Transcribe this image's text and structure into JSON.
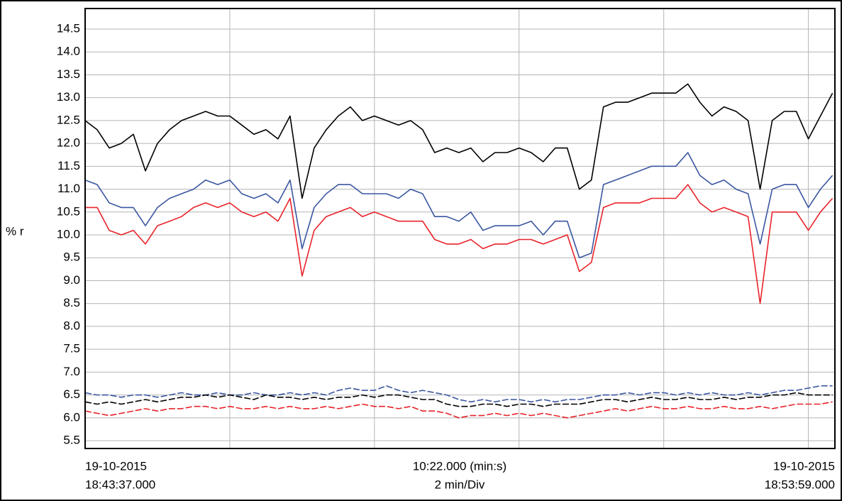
{
  "chart_data": {
    "type": "line",
    "y_label": "% r",
    "x_start_label": [
      "19-10-2015",
      "18:43:37.000"
    ],
    "x_center_label": [
      "10:22.000 (min:s)",
      "2 min/Div"
    ],
    "x_end_label": [
      "19-10-2015",
      "18:53:59.000"
    ],
    "xlim": [
      0,
      622
    ],
    "xticks": [
      120,
      240,
      360,
      480,
      600
    ],
    "ylim": [
      5.33,
      14.95
    ],
    "yticks": [
      5.5,
      {
        "value": 6,
        "label": "6.0"
      },
      6.5,
      {
        "value": 7,
        "label": "7.0"
      },
      7.5,
      {
        "value": 8,
        "label": "8.0"
      },
      8.5,
      {
        "value": 9,
        "label": "9.0"
      },
      9.5,
      {
        "value": 10,
        "label": "10.0"
      },
      10.5,
      {
        "value": 11,
        "label": "11.0"
      },
      11.5,
      {
        "value": 12,
        "label": "12.0"
      },
      12.5,
      {
        "value": 13,
        "label": "13.0"
      },
      13.5,
      {
        "value": 14,
        "label": "14.0"
      },
      14.5
    ],
    "grid": true,
    "x": [
      0,
      10,
      20,
      30,
      40,
      50,
      60,
      70,
      80,
      90,
      100,
      110,
      120,
      130,
      140,
      150,
      160,
      170,
      180,
      190,
      200,
      210,
      220,
      230,
      240,
      250,
      260,
      270,
      280,
      290,
      300,
      310,
      320,
      330,
      340,
      350,
      360,
      370,
      380,
      390,
      400,
      410,
      420,
      430,
      440,
      450,
      460,
      470,
      480,
      490,
      500,
      510,
      520,
      530,
      540,
      550,
      560,
      570,
      580,
      590,
      600,
      610,
      620
    ],
    "series": [
      {
        "color": "#000000",
        "dashed": false,
        "values": [
          12.5,
          12.3,
          11.9,
          12.0,
          12.2,
          11.4,
          12.0,
          12.3,
          12.5,
          12.6,
          12.7,
          12.6,
          12.6,
          12.4,
          12.2,
          12.3,
          12.1,
          12.6,
          10.8,
          11.9,
          12.3,
          12.6,
          12.8,
          12.5,
          12.6,
          12.5,
          12.4,
          12.5,
          12.3,
          11.8,
          11.9,
          11.8,
          11.9,
          11.6,
          11.8,
          11.8,
          11.9,
          11.8,
          11.6,
          11.9,
          11.9,
          11.0,
          11.2,
          12.8,
          12.9,
          12.9,
          13.0,
          13.1,
          13.1,
          13.1,
          13.3,
          12.9,
          12.6,
          12.8,
          12.7,
          12.5,
          11.0,
          12.5,
          12.7,
          12.7,
          12.1,
          12.6,
          13.1
        ]
      },
      {
        "color": "#3a56a0",
        "dashed": false,
        "values": [
          11.2,
          11.1,
          10.7,
          10.6,
          10.6,
          10.2,
          10.6,
          10.8,
          10.9,
          11.0,
          11.2,
          11.1,
          11.2,
          10.9,
          10.8,
          10.9,
          10.7,
          11.2,
          9.7,
          10.6,
          10.9,
          11.1,
          11.1,
          10.9,
          10.9,
          10.9,
          10.8,
          11.0,
          10.9,
          10.4,
          10.4,
          10.3,
          10.5,
          10.1,
          10.2,
          10.2,
          10.2,
          10.3,
          10.0,
          10.3,
          10.3,
          9.5,
          9.6,
          11.1,
          11.2,
          11.3,
          11.4,
          11.5,
          11.5,
          11.5,
          11.8,
          11.3,
          11.1,
          11.2,
          11.0,
          10.9,
          9.8,
          11.0,
          11.1,
          11.1,
          10.6,
          11.0,
          11.3
        ]
      },
      {
        "color": "#e8232a",
        "dashed": false,
        "values": [
          10.6,
          10.6,
          10.1,
          10.0,
          10.1,
          9.8,
          10.2,
          10.3,
          10.4,
          10.6,
          10.7,
          10.6,
          10.7,
          10.5,
          10.4,
          10.5,
          10.3,
          10.8,
          9.1,
          10.1,
          10.4,
          10.5,
          10.6,
          10.4,
          10.5,
          10.4,
          10.3,
          10.3,
          10.3,
          9.9,
          9.8,
          9.8,
          9.9,
          9.7,
          9.8,
          9.8,
          9.9,
          9.9,
          9.8,
          9.9,
          10.0,
          9.2,
          9.4,
          10.6,
          10.7,
          10.7,
          10.7,
          10.8,
          10.8,
          10.8,
          11.1,
          10.7,
          10.5,
          10.6,
          10.5,
          10.4,
          8.5,
          10.5,
          10.5,
          10.5,
          10.1,
          10.5,
          10.8
        ]
      },
      {
        "color": "#3a56a0",
        "dashed": true,
        "values": [
          6.55,
          6.5,
          6.5,
          6.45,
          6.5,
          6.5,
          6.45,
          6.5,
          6.55,
          6.5,
          6.5,
          6.55,
          6.5,
          6.5,
          6.55,
          6.5,
          6.5,
          6.55,
          6.5,
          6.55,
          6.5,
          6.6,
          6.65,
          6.6,
          6.6,
          6.7,
          6.6,
          6.55,
          6.6,
          6.55,
          6.5,
          6.4,
          6.35,
          6.4,
          6.35,
          6.4,
          6.4,
          6.35,
          6.4,
          6.35,
          6.4,
          6.4,
          6.45,
          6.5,
          6.5,
          6.55,
          6.5,
          6.55,
          6.55,
          6.5,
          6.55,
          6.5,
          6.55,
          6.5,
          6.5,
          6.55,
          6.5,
          6.55,
          6.6,
          6.6,
          6.65,
          6.7,
          6.7
        ]
      },
      {
        "color": "#000000",
        "dashed": true,
        "values": [
          6.35,
          6.3,
          6.35,
          6.3,
          6.35,
          6.4,
          6.35,
          6.4,
          6.45,
          6.45,
          6.5,
          6.45,
          6.5,
          6.45,
          6.4,
          6.5,
          6.45,
          6.45,
          6.4,
          6.45,
          6.4,
          6.45,
          6.45,
          6.5,
          6.45,
          6.5,
          6.5,
          6.45,
          6.4,
          6.4,
          6.3,
          6.25,
          6.25,
          6.3,
          6.3,
          6.25,
          6.3,
          6.3,
          6.25,
          6.3,
          6.3,
          6.3,
          6.35,
          6.4,
          6.4,
          6.35,
          6.4,
          6.45,
          6.4,
          6.4,
          6.45,
          6.4,
          6.4,
          6.45,
          6.4,
          6.45,
          6.45,
          6.5,
          6.5,
          6.55,
          6.5,
          6.5,
          6.5
        ]
      },
      {
        "color": "#e8232a",
        "dashed": true,
        "values": [
          6.15,
          6.1,
          6.05,
          6.1,
          6.15,
          6.2,
          6.15,
          6.2,
          6.2,
          6.25,
          6.25,
          6.2,
          6.25,
          6.2,
          6.2,
          6.25,
          6.2,
          6.25,
          6.2,
          6.2,
          6.25,
          6.2,
          6.25,
          6.3,
          6.25,
          6.25,
          6.2,
          6.25,
          6.15,
          6.15,
          6.1,
          6.0,
          6.05,
          6.05,
          6.1,
          6.05,
          6.1,
          6.05,
          6.1,
          6.05,
          6.0,
          6.05,
          6.1,
          6.15,
          6.2,
          6.15,
          6.2,
          6.25,
          6.2,
          6.2,
          6.25,
          6.2,
          6.2,
          6.25,
          6.2,
          6.2,
          6.25,
          6.2,
          6.25,
          6.3,
          6.3,
          6.3,
          6.35
        ]
      }
    ]
  }
}
